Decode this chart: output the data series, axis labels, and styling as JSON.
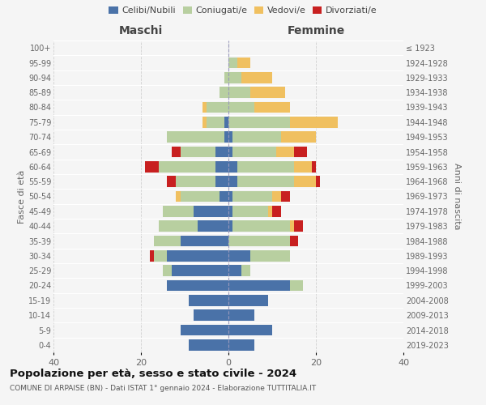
{
  "age_groups": [
    "0-4",
    "5-9",
    "10-14",
    "15-19",
    "20-24",
    "25-29",
    "30-34",
    "35-39",
    "40-44",
    "45-49",
    "50-54",
    "55-59",
    "60-64",
    "65-69",
    "70-74",
    "75-79",
    "80-84",
    "85-89",
    "90-94",
    "95-99",
    "100+"
  ],
  "birth_years": [
    "2019-2023",
    "2014-2018",
    "2009-2013",
    "2004-2008",
    "1999-2003",
    "1994-1998",
    "1989-1993",
    "1984-1988",
    "1979-1983",
    "1974-1978",
    "1969-1973",
    "1964-1968",
    "1959-1963",
    "1954-1958",
    "1949-1953",
    "1944-1948",
    "1939-1943",
    "1934-1938",
    "1929-1933",
    "1924-1928",
    "≤ 1923"
  ],
  "male": {
    "celibi": [
      9,
      11,
      8,
      9,
      14,
      13,
      14,
      11,
      7,
      8,
      2,
      3,
      3,
      3,
      1,
      1,
      0,
      0,
      0,
      0,
      0
    ],
    "coniugati": [
      0,
      0,
      0,
      0,
      0,
      2,
      3,
      6,
      9,
      7,
      9,
      9,
      13,
      8,
      13,
      4,
      5,
      2,
      1,
      0,
      0
    ],
    "vedovi": [
      0,
      0,
      0,
      0,
      0,
      0,
      0,
      0,
      0,
      0,
      1,
      0,
      0,
      0,
      0,
      1,
      1,
      0,
      0,
      0,
      0
    ],
    "divorziati": [
      0,
      0,
      0,
      0,
      0,
      0,
      1,
      0,
      0,
      0,
      0,
      2,
      3,
      2,
      0,
      0,
      0,
      0,
      0,
      0,
      0
    ]
  },
  "female": {
    "nubili": [
      6,
      10,
      6,
      9,
      14,
      3,
      5,
      0,
      1,
      1,
      1,
      2,
      2,
      1,
      1,
      0,
      0,
      0,
      0,
      0,
      0
    ],
    "coniugate": [
      0,
      0,
      0,
      0,
      3,
      2,
      9,
      14,
      13,
      8,
      9,
      13,
      13,
      10,
      11,
      14,
      6,
      5,
      3,
      2,
      0
    ],
    "vedove": [
      0,
      0,
      0,
      0,
      0,
      0,
      0,
      0,
      1,
      1,
      2,
      5,
      4,
      4,
      8,
      11,
      8,
      8,
      7,
      3,
      0
    ],
    "divorziate": [
      0,
      0,
      0,
      0,
      0,
      0,
      0,
      2,
      2,
      2,
      2,
      1,
      1,
      3,
      0,
      0,
      0,
      0,
      0,
      0,
      0
    ]
  },
  "colors": {
    "celibi_nubili": "#4a72a8",
    "coniugati": "#b8cfa0",
    "vedovi": "#f0c060",
    "divorziati": "#c82020"
  },
  "xlim": 40,
  "title": "Popolazione per età, sesso e stato civile - 2024",
  "subtitle": "COMUNE DI ARPAISE (BN) - Dati ISTAT 1° gennaio 2024 - Elaborazione TUTTITALIA.IT",
  "ylabel_left": "Fasce di età",
  "ylabel_right": "Anni di nascita",
  "xlabel_left": "Maschi",
  "xlabel_right": "Femmine",
  "bg_color": "#f5f5f5",
  "grid_color": "#cccccc"
}
